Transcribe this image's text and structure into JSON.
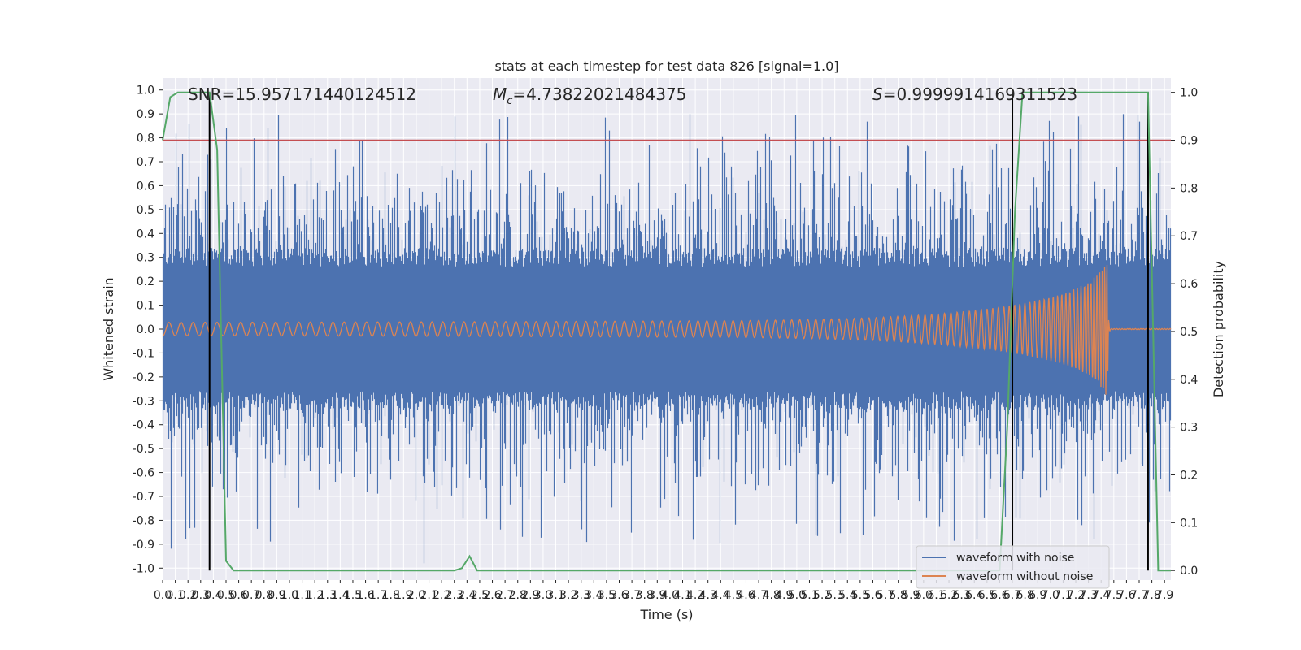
{
  "chart_data": {
    "type": "line",
    "title": "stats at each timestep for test data 826 [signal=1.0]",
    "xlabel": "Time (s)",
    "ylabel": "Whitened strain",
    "y2label": "Detection probability",
    "xlim": [
      0.0,
      7.95
    ],
    "ylim": [
      -1.05,
      1.05
    ],
    "y2lim": [
      -0.02,
      1.03
    ],
    "xticks": [
      "0.0",
      "0.1",
      "0.2",
      "0.3",
      "0.4",
      "0.5",
      "0.6",
      "0.7",
      "0.8",
      "0.9",
      "1.0",
      "1.1",
      "1.2",
      "1.3",
      "1.4",
      "1.5",
      "1.6",
      "1.7",
      "1.8",
      "1.9",
      "2.0",
      "2.1",
      "2.2",
      "2.3",
      "2.4",
      "2.5",
      "2.6",
      "2.7",
      "2.8",
      "2.9",
      "3.0",
      "3.1",
      "3.2",
      "3.3",
      "3.4",
      "3.5",
      "3.6",
      "3.7",
      "3.8",
      "3.9",
      "4.0",
      "4.1",
      "4.2",
      "4.3",
      "4.4",
      "4.5",
      "4.6",
      "4.7",
      "4.8",
      "4.9",
      "5.0",
      "5.1",
      "5.2",
      "5.3",
      "5.4",
      "5.5",
      "5.6",
      "5.7",
      "5.8",
      "5.9",
      "6.0",
      "6.1",
      "6.2",
      "6.3",
      "6.4",
      "6.5",
      "6.6",
      "6.7",
      "6.8",
      "6.9",
      "7.0",
      "7.1",
      "7.2",
      "7.3",
      "7.4",
      "7.5",
      "7.6",
      "7.7",
      "7.8",
      "7.9"
    ],
    "yticks": [
      "1.0",
      "0.9",
      "0.8",
      "0.7",
      "0.6",
      "0.5",
      "0.4",
      "0.3",
      "0.2",
      "0.1",
      "0.0",
      "-0.1",
      "-0.2",
      "-0.3",
      "-0.4",
      "-0.5",
      "-0.6",
      "-0.7",
      "-0.8",
      "-0.9",
      "-1.0"
    ],
    "y2ticks": [
      "1.0",
      "0.9",
      "0.8",
      "0.7",
      "0.6",
      "0.5",
      "0.4",
      "0.3",
      "0.2",
      "0.1",
      "0.0"
    ],
    "annotations": {
      "snr": "SNR=15.957171440124512",
      "mc_symbol": "M",
      "mc_sub": "c",
      "mc_value": "=4.73822021484375",
      "s_symbol": "S",
      "s_value": "=0.9999914169311523"
    },
    "threshold_y2": 0.9,
    "vertical_lines_x": [
      0.37,
      6.7,
      7.77
    ],
    "detection_probability": {
      "x": [
        0.0,
        0.06,
        0.12,
        0.18,
        0.24,
        0.3,
        0.37,
        0.43,
        0.5,
        0.56,
        0.62,
        2.3,
        2.36,
        2.42,
        2.48,
        5.0,
        6.6,
        6.66,
        6.72,
        6.78,
        6.84,
        7.2,
        7.77,
        7.81,
        7.85,
        7.9,
        7.95
      ],
      "y": [
        0.9,
        0.99,
        1.0,
        1.0,
        1.0,
        1.0,
        1.0,
        0.88,
        0.02,
        0.0,
        0.0,
        0.0,
        0.005,
        0.03,
        0.0,
        0.0,
        0.0,
        0.3,
        0.75,
        1.0,
        1.0,
        1.0,
        1.0,
        0.5,
        0.0,
        0.0,
        0.0
      ]
    },
    "series": [
      {
        "name": "waveform with noise",
        "color": "#4c72b0",
        "description": "whitened noisy strain, amplitude mostly within ±0.4 with spikes up to ±1.0"
      },
      {
        "name": "waveform without noise",
        "color": "#dd8452",
        "description": "chirp signal growing from ±0.03 to ±0.33, merger near t=7.45 s"
      }
    ],
    "legend_position": "lower-right",
    "colors": {
      "background": "#eaeaf2",
      "grid": "#ffffff",
      "noisy": "#4c72b0",
      "clean": "#dd8452",
      "probability": "#55a868",
      "threshold": "#c44e52",
      "vlines": "#000000"
    }
  }
}
